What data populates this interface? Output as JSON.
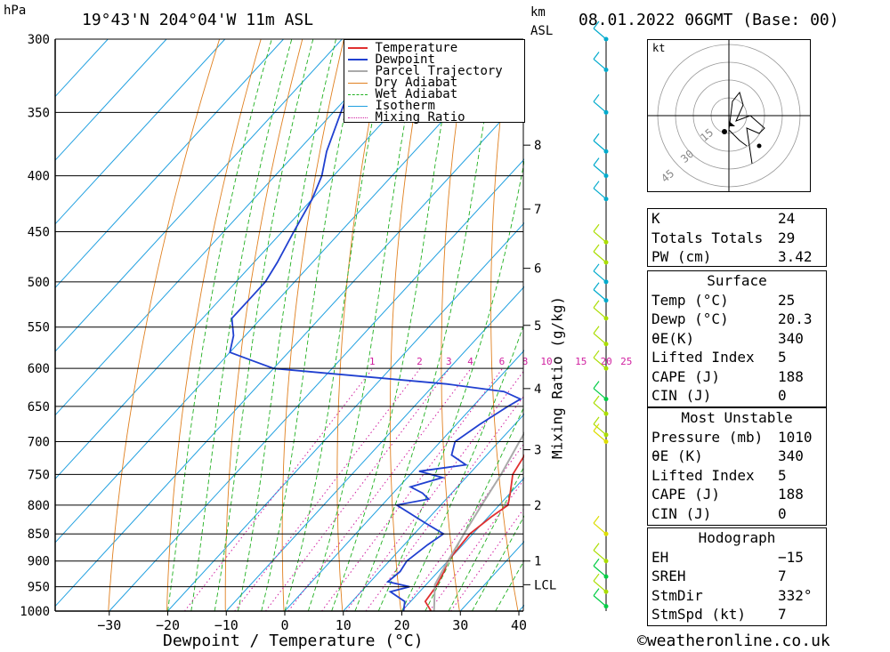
{
  "header": {
    "location": "19°43'N  204°04'W  11m  ASL",
    "datetime": "08.01.2022  06GMT  (Base: 00)",
    "hpa_unit": "hPa",
    "km_unit": "km",
    "km_unit2": "ASL"
  },
  "chart_data": {
    "type": "line",
    "title": "19°43'N  204°04'W  11m  ASL",
    "xlabel": "Dewpoint / Temperature (°C)",
    "ylabel": "hPa",
    "right_label": "Mixing Ratio (g/kg)",
    "xlim": [
      -40,
      40
    ],
    "ylim": [
      1000,
      300
    ],
    "x_ticks": [
      -30,
      -20,
      -10,
      0,
      10,
      20,
      30,
      40
    ],
    "x_tick_labels": [
      "−30",
      "−20",
      "−10",
      "0",
      "10",
      "20",
      "30",
      "40"
    ],
    "pressure_levels": [
      300,
      350,
      400,
      450,
      500,
      550,
      600,
      650,
      700,
      750,
      800,
      850,
      900,
      950,
      1000
    ],
    "km_ticks": [
      {
        "p": 375,
        "label": "8"
      },
      {
        "p": 429,
        "label": "7"
      },
      {
        "p": 486,
        "label": "6"
      },
      {
        "p": 548,
        "label": "5"
      },
      {
        "p": 626,
        "label": "4"
      },
      {
        "p": 712,
        "label": "3"
      },
      {
        "p": 800,
        "label": "2"
      },
      {
        "p": 900,
        "label": "1"
      },
      {
        "p": 946,
        "label": "LCL"
      }
    ],
    "mixing_ratio_labels": [
      "1",
      "2",
      "3",
      "4",
      "6",
      "8",
      "10",
      "15",
      "20",
      "25"
    ],
    "legend": [
      "Temperature",
      "Dewpoint",
      "Parcel Trajectory",
      "Dry Adiabat",
      "Wet Adiabat",
      "Isotherm",
      "Mixing Ratio"
    ],
    "legend_position": "top-right",
    "series": [
      {
        "name": "Temperature",
        "color": "#e03030",
        "points": [
          [
            1000,
            25.0
          ],
          [
            980,
            22.5
          ],
          [
            950,
            22.0
          ],
          [
            920,
            21.0
          ],
          [
            900,
            20.0
          ],
          [
            850,
            19.5
          ],
          [
            820,
            20.5
          ],
          [
            800,
            21.5
          ],
          [
            780,
            20.0
          ],
          [
            750,
            17.5
          ],
          [
            720,
            16.5
          ],
          [
            700,
            15.5
          ],
          [
            650,
            13.0
          ],
          [
            600,
            11.5
          ],
          [
            550,
            9.5
          ],
          [
            530,
            8.5
          ],
          [
            500,
            6.0
          ],
          [
            470,
            2.0
          ],
          [
            450,
            -1.0
          ],
          [
            420,
            -5.0
          ],
          [
            400,
            -6.5
          ],
          [
            380,
            -9.0
          ],
          [
            360,
            -11.5
          ]
        ]
      },
      {
        "name": "Dewpoint",
        "color": "#2040d0",
        "points": [
          [
            1000,
            20.3
          ],
          [
            980,
            19.0
          ],
          [
            960,
            15.0
          ],
          [
            950,
            17.5
          ],
          [
            940,
            13.0
          ],
          [
            920,
            13.5
          ],
          [
            900,
            13.0
          ],
          [
            870,
            14.0
          ],
          [
            850,
            15.0
          ],
          [
            830,
            10.0
          ],
          [
            800,
            2.5
          ],
          [
            790,
            7.0
          ],
          [
            780,
            5.0
          ],
          [
            770,
            2.0
          ],
          [
            755,
            6.0
          ],
          [
            745,
            1.0
          ],
          [
            735,
            8.0
          ],
          [
            720,
            4.0
          ],
          [
            700,
            2.5
          ],
          [
            675,
            4.0
          ],
          [
            650,
            6.0
          ],
          [
            640,
            7.0
          ],
          [
            630,
            3.0
          ],
          [
            620,
            -8.0
          ],
          [
            600,
            -40.0
          ],
          [
            590,
            -45.0
          ],
          [
            580,
            -50.0
          ],
          [
            560,
            -52.0
          ],
          [
            540,
            -55.0
          ],
          [
            520,
            -55.0
          ],
          [
            500,
            -55.0
          ],
          [
            480,
            -56.0
          ],
          [
            450,
            -58.0
          ],
          [
            420,
            -60.0
          ],
          [
            400,
            -62.0
          ],
          [
            380,
            -65.0
          ],
          [
            340,
            -70.0
          ],
          [
            320,
            -72.0
          ],
          [
            300,
            -75.0
          ]
        ]
      },
      {
        "name": "Parcel Trajectory",
        "color": "#aaaaaa",
        "points": [
          [
            1000,
            25.5
          ],
          [
            946,
            21.5
          ],
          [
            900,
            20.0
          ],
          [
            850,
            18.5
          ],
          [
            800,
            17.0
          ],
          [
            750,
            15.5
          ],
          [
            700,
            13.5
          ],
          [
            650,
            11.5
          ],
          [
            600,
            9.0
          ],
          [
            550,
            6.0
          ],
          [
            500,
            2.5
          ],
          [
            450,
            -2.0
          ],
          [
            400,
            -8.0
          ],
          [
            350,
            -16.0
          ],
          [
            300,
            -26.0
          ]
        ]
      }
    ],
    "grid": true
  },
  "hodograph": {
    "unit_label": "kt",
    "ring_labels": [
      "15",
      "30",
      "45"
    ]
  },
  "wind_profile_colors": [
    "#00aacc",
    "#aadd00",
    "#00cc44",
    "#dddd00"
  ],
  "indices": {
    "rows": [
      {
        "key": "K",
        "value": "24"
      },
      {
        "key": "Totals Totals",
        "value": "29"
      },
      {
        "key": "PW (cm)",
        "value": "3.42"
      }
    ]
  },
  "surface": {
    "title": "Surface",
    "rows": [
      {
        "key": "Temp (°C)",
        "value": "25"
      },
      {
        "key": "Dewp (°C)",
        "value": "20.3"
      },
      {
        "key": "θE(K)",
        "value": "340"
      },
      {
        "key": "Lifted Index",
        "value": "5"
      },
      {
        "key": "CAPE (J)",
        "value": "188"
      },
      {
        "key": "CIN (J)",
        "value": "0"
      }
    ]
  },
  "most_unstable": {
    "title": "Most Unstable",
    "rows": [
      {
        "key": "Pressure (mb)",
        "value": "1010"
      },
      {
        "key": "θE (K)",
        "value": "340"
      },
      {
        "key": "Lifted Index",
        "value": "5"
      },
      {
        "key": "CAPE (J)",
        "value": "188"
      },
      {
        "key": "CIN (J)",
        "value": "0"
      }
    ]
  },
  "hodograph_table": {
    "title": "Hodograph",
    "rows": [
      {
        "key": "EH",
        "value": "−15"
      },
      {
        "key": "SREH",
        "value": "7"
      },
      {
        "key": "StmDir",
        "value": "332°"
      },
      {
        "key": "StmSpd (kt)",
        "value": "7"
      }
    ]
  },
  "footer": {
    "copyright_symbol": "©",
    "site": "weatheronline.co.uk"
  }
}
